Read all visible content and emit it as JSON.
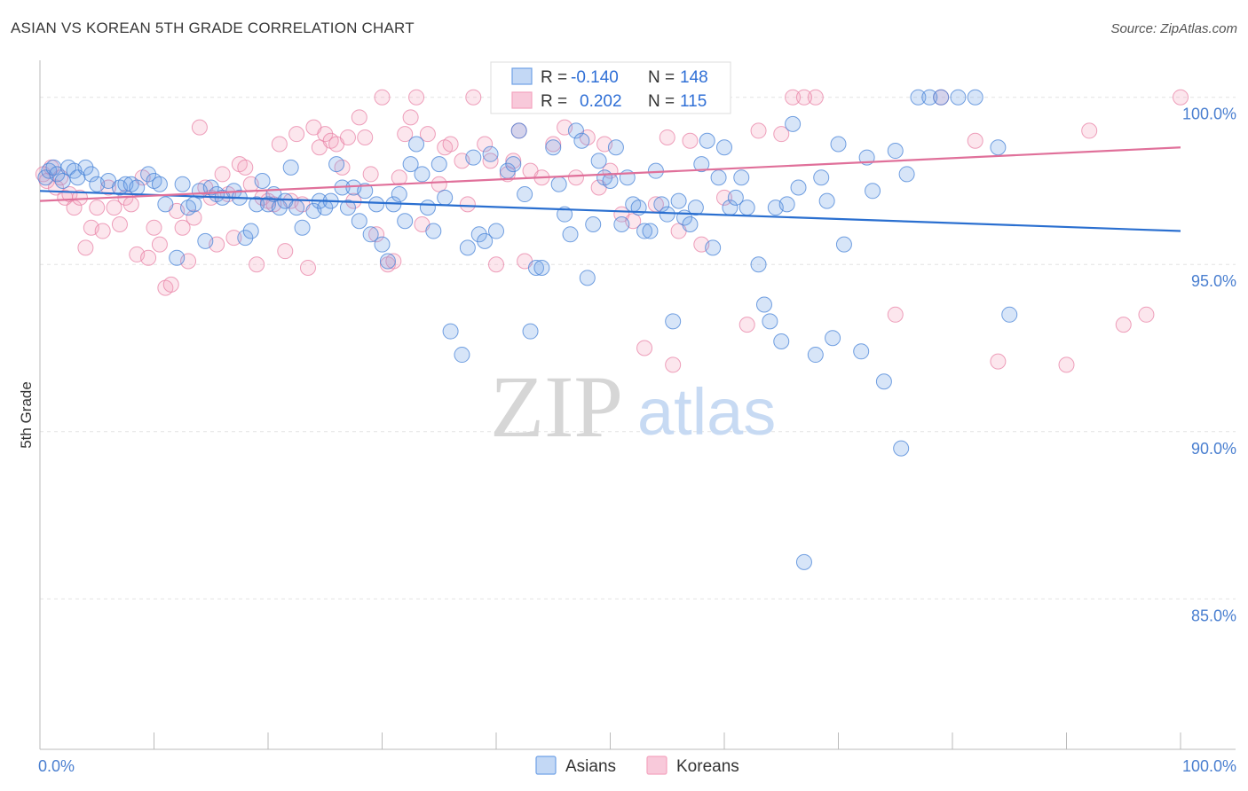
{
  "title": "ASIAN VS KOREAN 5TH GRADE CORRELATION CHART",
  "source": "Source: ZipAtlas.com",
  "watermark": {
    "zip": "ZIP",
    "atlas": "atlas"
  },
  "colors": {
    "asians": "#6fa1e6",
    "koreans": "#f4a4bf",
    "asians_line": "#2a6fd0",
    "koreans_line": "#e0709a"
  },
  "legend_top": {
    "rows": [
      {
        "r_label": "R =",
        "r_value": "-0.140",
        "n_label": "N =",
        "n_value": "148"
      },
      {
        "r_label": "R =",
        "r_value": "0.202",
        "n_label": "N =",
        "n_value": "115"
      }
    ]
  },
  "chart_data": {
    "type": "scatter",
    "xlabel": "",
    "ylabel": "5th Grade",
    "xlim": [
      0,
      100
    ],
    "ylim": [
      80.5,
      101.0
    ],
    "x_tick_labels": [
      "0.0%",
      "100.0%"
    ],
    "y_ticks": [
      {
        "value": 100,
        "label": "100.0%"
      },
      {
        "value": 95,
        "label": "95.0%"
      },
      {
        "value": 90,
        "label": "90.0%"
      },
      {
        "value": 85,
        "label": "85.0%"
      }
    ],
    "grid": true,
    "legend": [
      "Asians",
      "Koreans"
    ],
    "series": [
      {
        "name": "Asians",
        "trend": {
          "x": [
            0,
            100
          ],
          "y": [
            97.2,
            96.0
          ]
        },
        "points": [
          [
            0.5,
            97.6
          ],
          [
            0.8,
            97.8
          ],
          [
            1.2,
            97.9
          ],
          [
            1.5,
            97.7
          ],
          [
            2.0,
            97.5
          ],
          [
            2.5,
            97.9
          ],
          [
            3.0,
            97.8
          ],
          [
            3.3,
            97.6
          ],
          [
            4.0,
            97.9
          ],
          [
            4.5,
            97.7
          ],
          [
            5.0,
            97.4
          ],
          [
            6.0,
            97.5
          ],
          [
            7.0,
            97.3
          ],
          [
            7.5,
            97.4
          ],
          [
            8.0,
            97.4
          ],
          [
            8.5,
            97.3
          ],
          [
            9.5,
            97.7
          ],
          [
            10.0,
            97.5
          ],
          [
            10.5,
            97.4
          ],
          [
            11.0,
            96.8
          ],
          [
            12.0,
            95.2
          ],
          [
            12.5,
            97.4
          ],
          [
            13.0,
            96.7
          ],
          [
            13.5,
            96.8
          ],
          [
            14.0,
            97.2
          ],
          [
            14.5,
            95.7
          ],
          [
            15.0,
            97.3
          ],
          [
            15.5,
            97.1
          ],
          [
            16.0,
            97.0
          ],
          [
            17.0,
            97.2
          ],
          [
            17.5,
            97.0
          ],
          [
            18.0,
            95.8
          ],
          [
            18.5,
            96.0
          ],
          [
            19.0,
            96.8
          ],
          [
            19.5,
            97.5
          ],
          [
            20.0,
            96.8
          ],
          [
            20.5,
            97.1
          ],
          [
            21.0,
            96.7
          ],
          [
            21.5,
            96.9
          ],
          [
            22.0,
            97.9
          ],
          [
            22.5,
            96.7
          ],
          [
            23.0,
            96.1
          ],
          [
            24.0,
            96.6
          ],
          [
            24.5,
            96.9
          ],
          [
            25.0,
            96.7
          ],
          [
            25.5,
            96.9
          ],
          [
            26.0,
            98.0
          ],
          [
            26.5,
            97.3
          ],
          [
            27.0,
            96.7
          ],
          [
            27.5,
            97.3
          ],
          [
            28.0,
            96.3
          ],
          [
            28.5,
            97.2
          ],
          [
            29.0,
            95.9
          ],
          [
            29.5,
            96.8
          ],
          [
            30.0,
            95.6
          ],
          [
            30.5,
            95.1
          ],
          [
            31.0,
            96.8
          ],
          [
            31.5,
            97.1
          ],
          [
            32.0,
            96.3
          ],
          [
            32.5,
            98.0
          ],
          [
            33.0,
            98.6
          ],
          [
            33.5,
            97.7
          ],
          [
            34.0,
            96.7
          ],
          [
            34.5,
            96.0
          ],
          [
            35.0,
            98.0
          ],
          [
            35.5,
            97.0
          ],
          [
            36.0,
            93.0
          ],
          [
            37.0,
            92.3
          ],
          [
            37.5,
            95.5
          ],
          [
            38.0,
            98.2
          ],
          [
            38.5,
            95.9
          ],
          [
            39.0,
            95.7
          ],
          [
            39.5,
            98.3
          ],
          [
            40.0,
            96.0
          ],
          [
            41.0,
            97.8
          ],
          [
            41.5,
            98.0
          ],
          [
            42.0,
            99.0
          ],
          [
            42.5,
            97.1
          ],
          [
            43.0,
            93.0
          ],
          [
            43.5,
            94.9
          ],
          [
            44.0,
            94.9
          ],
          [
            45.0,
            98.5
          ],
          [
            45.5,
            97.4
          ],
          [
            46.0,
            96.5
          ],
          [
            46.5,
            95.9
          ],
          [
            47.0,
            99.0
          ],
          [
            47.5,
            98.7
          ],
          [
            48.0,
            94.6
          ],
          [
            48.5,
            96.2
          ],
          [
            49.0,
            98.1
          ],
          [
            49.5,
            97.6
          ],
          [
            50.0,
            97.5
          ],
          [
            50.5,
            98.5
          ],
          [
            51.0,
            96.2
          ],
          [
            51.5,
            97.6
          ],
          [
            52.0,
            96.8
          ],
          [
            52.5,
            96.7
          ],
          [
            53.0,
            96.0
          ],
          [
            53.5,
            96.0
          ],
          [
            54.0,
            97.8
          ],
          [
            54.5,
            96.8
          ],
          [
            55.0,
            96.5
          ],
          [
            55.5,
            93.3
          ],
          [
            56.0,
            96.9
          ],
          [
            56.5,
            96.4
          ],
          [
            57.0,
            96.2
          ],
          [
            57.5,
            96.7
          ],
          [
            58.0,
            98.0
          ],
          [
            58.5,
            98.7
          ],
          [
            59.0,
            95.5
          ],
          [
            59.5,
            97.6
          ],
          [
            60.0,
            98.5
          ],
          [
            60.5,
            96.7
          ],
          [
            61.0,
            97.0
          ],
          [
            61.5,
            97.6
          ],
          [
            62.0,
            96.7
          ],
          [
            63.0,
            95.0
          ],
          [
            63.5,
            93.8
          ],
          [
            64.0,
            93.3
          ],
          [
            64.5,
            96.7
          ],
          [
            65.0,
            92.7
          ],
          [
            65.5,
            96.8
          ],
          [
            66.0,
            99.2
          ],
          [
            66.5,
            97.3
          ],
          [
            67.0,
            86.1
          ],
          [
            68.0,
            92.3
          ],
          [
            68.5,
            97.6
          ],
          [
            69.0,
            96.9
          ],
          [
            69.5,
            92.8
          ],
          [
            70.0,
            98.6
          ],
          [
            70.5,
            95.6
          ],
          [
            72.0,
            92.4
          ],
          [
            72.5,
            98.2
          ],
          [
            73.0,
            97.2
          ],
          [
            74.0,
            91.5
          ],
          [
            75.0,
            98.4
          ],
          [
            75.5,
            89.5
          ],
          [
            76.0,
            97.7
          ],
          [
            77.0,
            100.0
          ],
          [
            78.0,
            100.0
          ],
          [
            79.0,
            100.0
          ],
          [
            80.5,
            100.0
          ],
          [
            82.0,
            100.0
          ],
          [
            84.0,
            98.5
          ],
          [
            85.0,
            93.5
          ]
        ]
      },
      {
        "name": "Koreans",
        "trend": {
          "x": [
            0,
            100
          ],
          "y": [
            96.9,
            98.5
          ]
        },
        "points": [
          [
            0.3,
            97.7
          ],
          [
            0.6,
            97.5
          ],
          [
            1.0,
            97.9
          ],
          [
            1.4,
            97.3
          ],
          [
            1.8,
            97.6
          ],
          [
            2.2,
            97.0
          ],
          [
            2.6,
            97.1
          ],
          [
            3.0,
            96.7
          ],
          [
            3.5,
            97.0
          ],
          [
            4.0,
            95.5
          ],
          [
            4.5,
            96.1
          ],
          [
            5.0,
            96.7
          ],
          [
            5.5,
            96.0
          ],
          [
            6.0,
            97.3
          ],
          [
            6.5,
            96.7
          ],
          [
            7.0,
            96.2
          ],
          [
            7.5,
            97.0
          ],
          [
            8.0,
            96.8
          ],
          [
            8.5,
            95.3
          ],
          [
            9.0,
            97.6
          ],
          [
            9.5,
            95.2
          ],
          [
            10.0,
            96.1
          ],
          [
            10.5,
            95.6
          ],
          [
            11.0,
            94.3
          ],
          [
            11.5,
            94.4
          ],
          [
            12.0,
            96.6
          ],
          [
            12.5,
            96.1
          ],
          [
            13.0,
            95.1
          ],
          [
            13.5,
            96.4
          ],
          [
            14.0,
            99.1
          ],
          [
            14.5,
            97.3
          ],
          [
            15.0,
            97.0
          ],
          [
            15.5,
            95.6
          ],
          [
            16.0,
            97.7
          ],
          [
            16.5,
            97.1
          ],
          [
            17.0,
            95.8
          ],
          [
            17.5,
            98.0
          ],
          [
            18.0,
            97.9
          ],
          [
            18.5,
            97.4
          ],
          [
            19.0,
            95.0
          ],
          [
            19.5,
            97.0
          ],
          [
            20.0,
            96.9
          ],
          [
            20.5,
            96.8
          ],
          [
            21.0,
            98.6
          ],
          [
            21.5,
            95.4
          ],
          [
            22.0,
            96.9
          ],
          [
            22.5,
            98.9
          ],
          [
            23.0,
            96.8
          ],
          [
            23.5,
            94.9
          ],
          [
            24.0,
            99.1
          ],
          [
            24.5,
            98.5
          ],
          [
            25.0,
            98.9
          ],
          [
            25.5,
            98.7
          ],
          [
            26.0,
            98.6
          ],
          [
            26.5,
            97.9
          ],
          [
            27.0,
            98.8
          ],
          [
            27.5,
            96.9
          ],
          [
            28.0,
            99.4
          ],
          [
            28.5,
            98.8
          ],
          [
            29.0,
            97.7
          ],
          [
            29.5,
            95.9
          ],
          [
            30.0,
            100.0
          ],
          [
            30.5,
            95.0
          ],
          [
            31.0,
            95.1
          ],
          [
            31.5,
            97.6
          ],
          [
            32.0,
            98.9
          ],
          [
            32.5,
            99.4
          ],
          [
            33.0,
            100.0
          ],
          [
            33.5,
            96.2
          ],
          [
            34.0,
            98.9
          ],
          [
            35.0,
            97.4
          ],
          [
            35.5,
            98.5
          ],
          [
            36.0,
            98.6
          ],
          [
            37.0,
            98.1
          ],
          [
            37.5,
            96.8
          ],
          [
            38.0,
            100.0
          ],
          [
            39.0,
            98.6
          ],
          [
            39.5,
            98.1
          ],
          [
            40.0,
            95.0
          ],
          [
            41.0,
            97.7
          ],
          [
            41.5,
            98.1
          ],
          [
            42.0,
            99.0
          ],
          [
            42.5,
            95.1
          ],
          [
            43.0,
            97.8
          ],
          [
            44.0,
            97.6
          ],
          [
            45.0,
            98.6
          ],
          [
            46.0,
            99.1
          ],
          [
            47.0,
            97.6
          ],
          [
            48.0,
            98.8
          ],
          [
            49.0,
            97.3
          ],
          [
            49.5,
            98.6
          ],
          [
            50.0,
            97.8
          ],
          [
            51.0,
            96.5
          ],
          [
            52.0,
            96.3
          ],
          [
            53.0,
            92.5
          ],
          [
            54.0,
            96.8
          ],
          [
            55.0,
            98.8
          ],
          [
            55.5,
            92.0
          ],
          [
            56.0,
            96.0
          ],
          [
            57.0,
            98.7
          ],
          [
            58.0,
            95.6
          ],
          [
            60.0,
            97.0
          ],
          [
            62.0,
            93.2
          ],
          [
            63.0,
            99.0
          ],
          [
            65.0,
            98.9
          ],
          [
            68.0,
            100.0
          ],
          [
            75.0,
            93.5
          ],
          [
            79.0,
            100.0
          ],
          [
            82.0,
            98.7
          ],
          [
            84.0,
            92.1
          ],
          [
            90.0,
            92.0
          ],
          [
            92.0,
            99.0
          ],
          [
            95.0,
            93.2
          ],
          [
            97.0,
            93.5
          ],
          [
            100.0,
            100.0
          ],
          [
            66.0,
            100.0
          ],
          [
            67.0,
            100.0
          ]
        ]
      }
    ]
  },
  "legend_bottom": {
    "items": [
      "Asians",
      "Koreans"
    ]
  }
}
